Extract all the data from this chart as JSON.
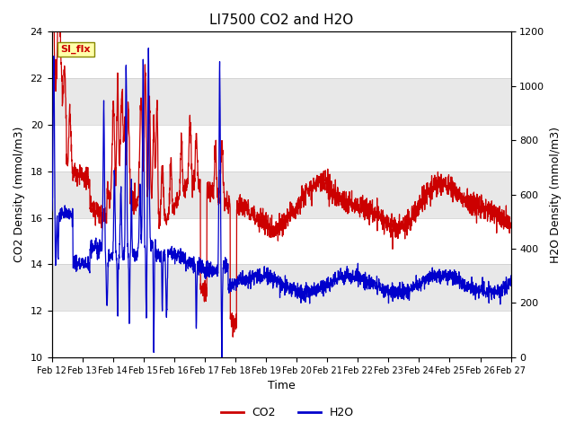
{
  "title": "LI7500 CO2 and H2O",
  "xlabel": "Time",
  "ylabel_left": "CO2 Density (mmol/m3)",
  "ylabel_right": "H2O Density (mmol/m3)",
  "ylim_left": [
    10,
    24
  ],
  "ylim_right": [
    0,
    1200
  ],
  "yticks_left": [
    10,
    12,
    14,
    16,
    18,
    20,
    22,
    24
  ],
  "yticks_right": [
    0,
    200,
    400,
    600,
    800,
    1000,
    1200
  ],
  "xtick_labels": [
    "Feb 12",
    "Feb 13",
    "Feb 14",
    "Feb 15",
    "Feb 16",
    "Feb 17",
    "Feb 18",
    "Feb 19",
    "Feb 20",
    "Feb 21",
    "Feb 22",
    "Feb 23",
    "Feb 24",
    "Feb 25",
    "Feb 26",
    "Feb 27"
  ],
  "co2_color": "#cc0000",
  "h2o_color": "#0000cc",
  "bg_color": "#e8e8e8",
  "white_band": "#ffffff",
  "annotation_text": "SI_flx",
  "annotation_color": "#cc0000",
  "annotation_bg": "#ffffaa",
  "annotation_border": "#888800",
  "legend_co2": "CO2",
  "legend_h2o": "H2O",
  "title_fontsize": 11,
  "axis_fontsize": 9,
  "tick_fontsize": 8,
  "figwidth": 6.4,
  "figheight": 4.8,
  "dpi": 100
}
